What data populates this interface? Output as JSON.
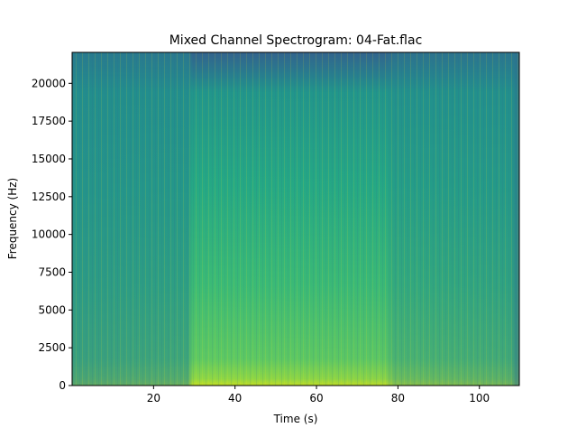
{
  "chart_data": {
    "type": "spectrogram",
    "title": "Mixed Channel Spectrogram: 04-Fat.flac",
    "x_label": "Time (s)",
    "y_label": "Frequency (Hz)",
    "xlim": [
      0,
      109.8
    ],
    "xticks": [
      20,
      40,
      60,
      80,
      100
    ],
    "ylim": [
      0,
      22050
    ],
    "yticks": [
      0,
      2500,
      5000,
      7500,
      10000,
      12500,
      15000,
      17500,
      20000
    ],
    "colormap": "viridis"
  }
}
